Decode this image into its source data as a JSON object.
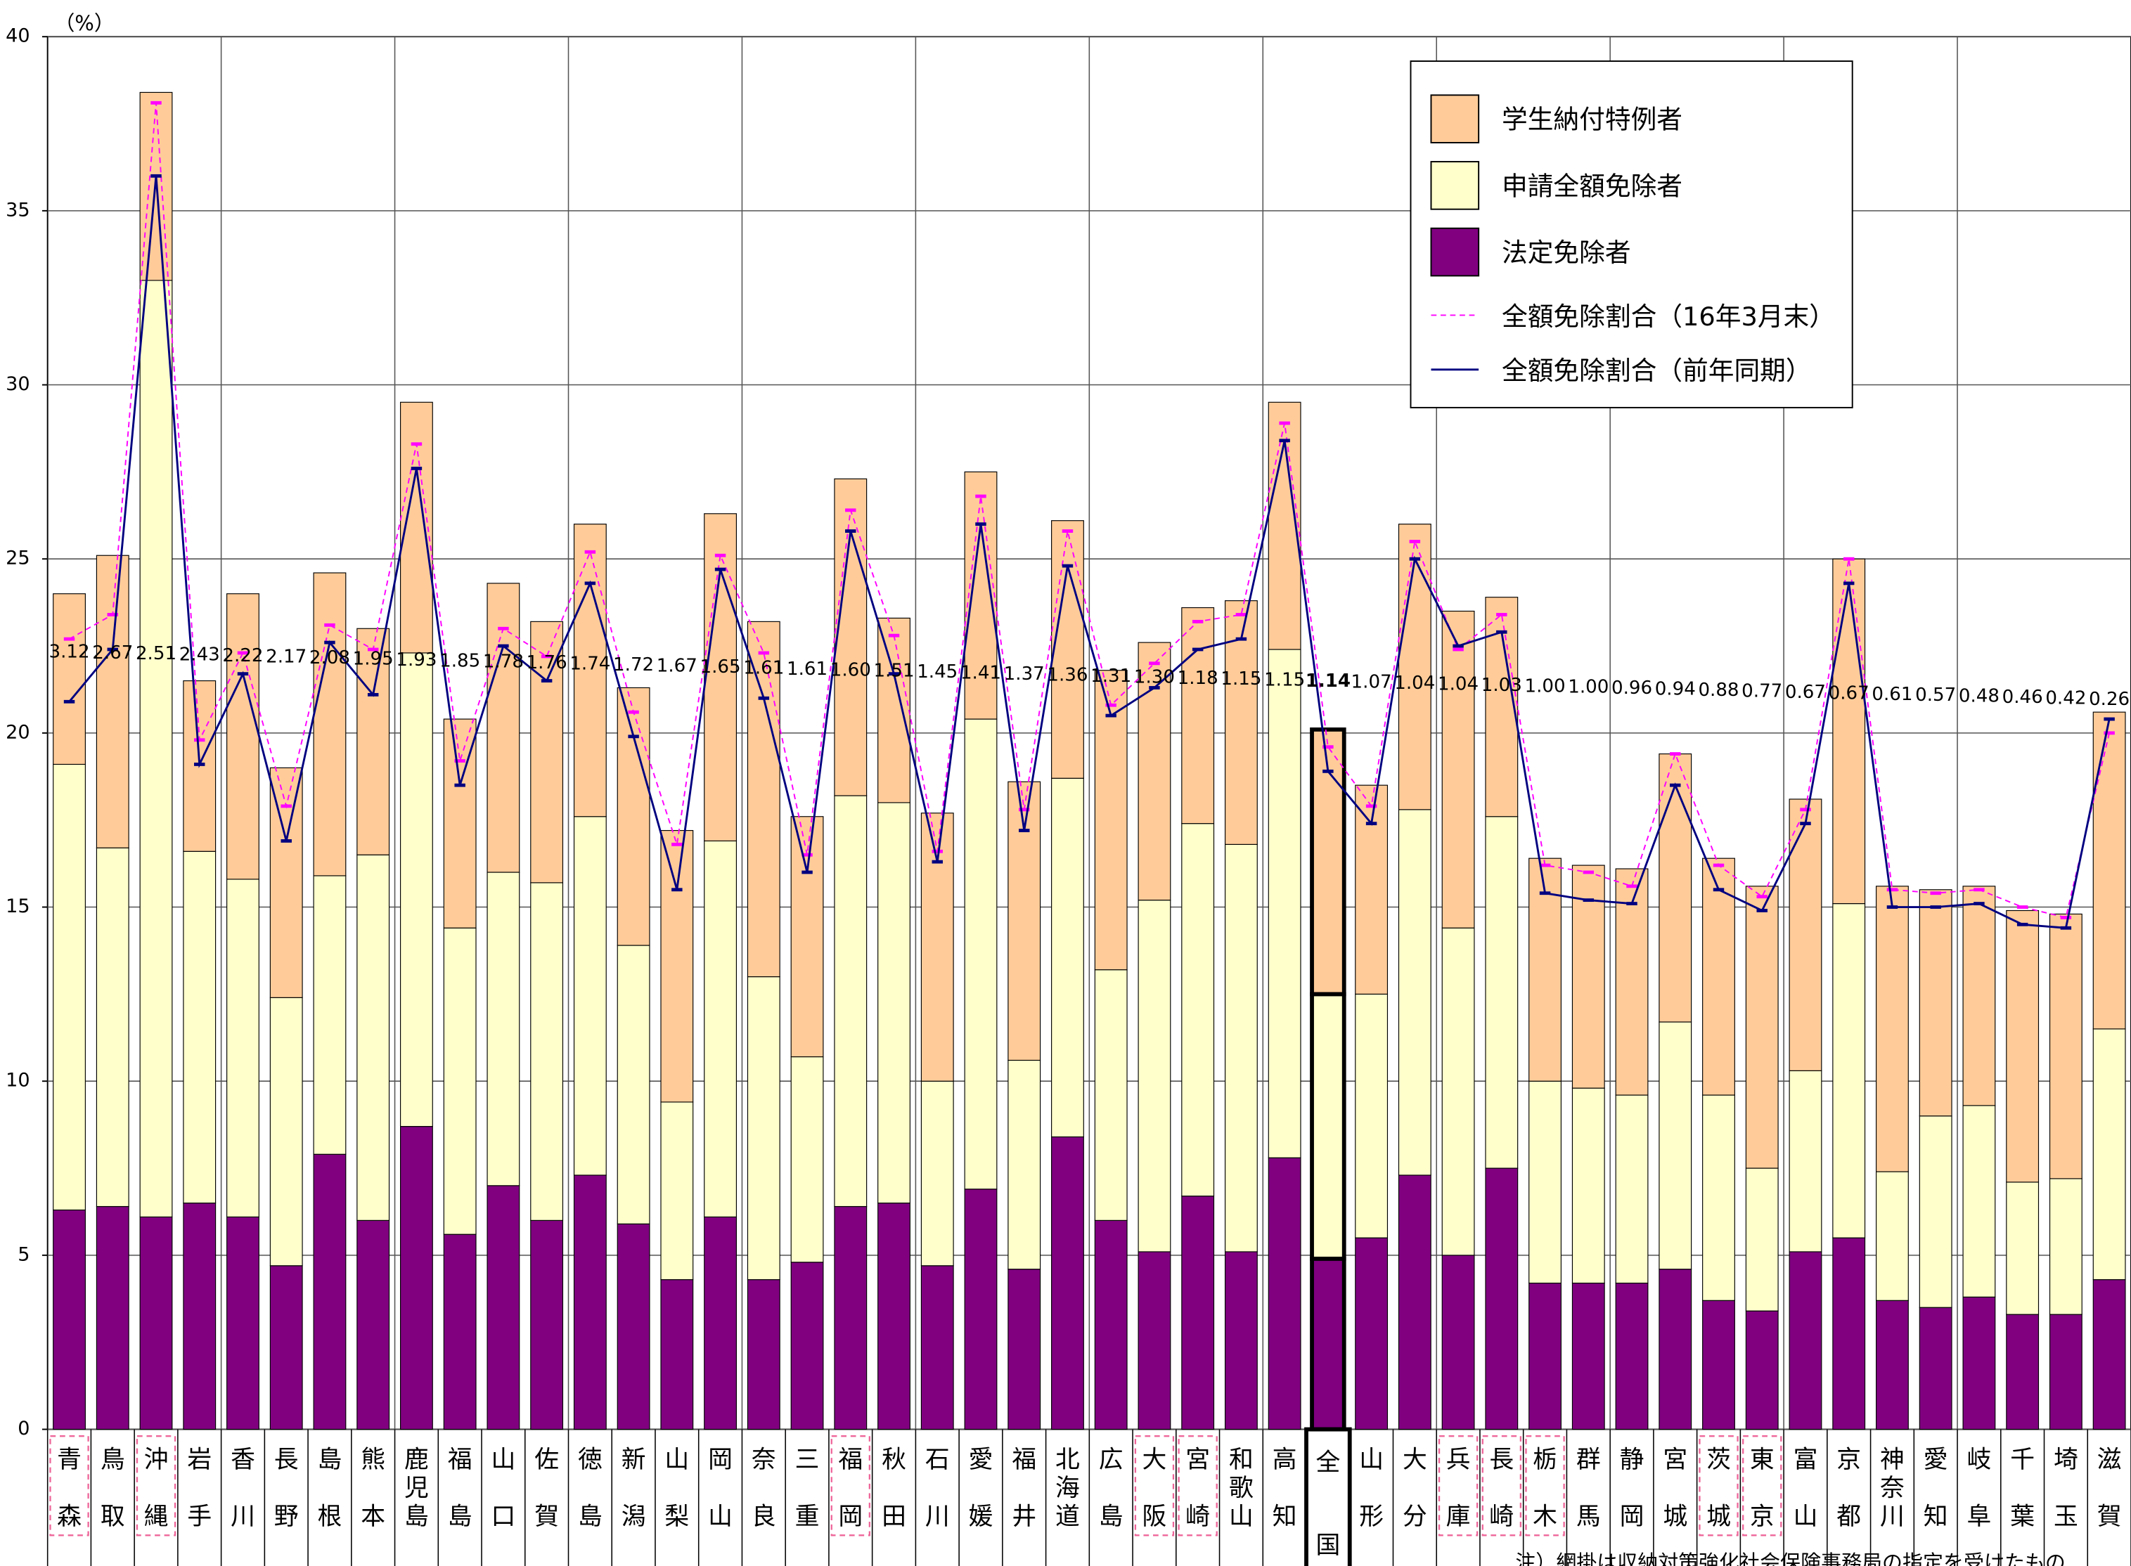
{
  "chart_data": {
    "type": "bar",
    "stacked": true,
    "unit": "（%）",
    "note": "注）網掛は収納対策強化社会保険事務局の指定を受けたもの",
    "categories": [
      "青森",
      "鳥取",
      "沖縄",
      "岩手",
      "香川",
      "長野",
      "島根",
      "熊本",
      "鹿児島",
      "福島",
      "山口",
      "佐賀",
      "徳島",
      "新潟",
      "山梨",
      "岡山",
      "奈良",
      "三重",
      "福岡",
      "秋田",
      "石川",
      "愛媛",
      "福井",
      "北海道",
      "広島",
      "大阪",
      "宮崎",
      "和歌山",
      "高知",
      "全国",
      "山形",
      "大分",
      "兵庫",
      "長崎",
      "栃木",
      "群馬",
      "静岡",
      "宮城",
      "茨城",
      "東京",
      "富山",
      "京都",
      "神奈川",
      "愛知",
      "岐阜",
      "千葉",
      "埼玉",
      "滋賀"
    ],
    "highlighted": [
      true,
      false,
      true,
      false,
      false,
      false,
      false,
      false,
      false,
      false,
      false,
      false,
      false,
      false,
      false,
      false,
      false,
      false,
      true,
      false,
      false,
      false,
      false,
      false,
      false,
      true,
      true,
      false,
      false,
      false,
      false,
      false,
      true,
      true,
      true,
      false,
      false,
      false,
      true,
      true,
      false,
      false,
      false,
      false,
      false,
      false,
      false,
      false
    ],
    "emphasized": [
      false,
      false,
      false,
      false,
      false,
      false,
      false,
      false,
      false,
      false,
      false,
      false,
      false,
      false,
      false,
      false,
      false,
      false,
      false,
      false,
      false,
      false,
      false,
      false,
      false,
      false,
      false,
      false,
      false,
      true,
      false,
      false,
      false,
      false,
      false,
      false,
      false,
      false,
      false,
      false,
      false,
      false,
      false,
      false,
      false,
      false,
      false,
      false
    ],
    "data_labels": [
      "3.12",
      "2.67",
      "2.51",
      "2.43",
      "2.22",
      "2.17",
      "2.08",
      "1.95",
      "1.93",
      "1.85",
      "1.78",
      "1.76",
      "1.74",
      "1.72",
      "1.67",
      "1.65",
      "1.61",
      "1.61",
      "1.60",
      "1.51",
      "1.45",
      "1.41",
      "1.37",
      "1.36",
      "1.31",
      "1.30",
      "1.18",
      "1.15",
      "1.15",
      "1.14",
      "1.07",
      "1.04",
      "1.04",
      "1.03",
      "1.00",
      "1.00",
      "0.96",
      "0.94",
      "0.88",
      "0.77",
      "0.67",
      "0.67",
      "0.61",
      "0.57",
      "0.48",
      "0.46",
      "0.42",
      "0.26"
    ],
    "series": [
      {
        "name": "法定免除者",
        "color": "#800080",
        "values": [
          6.3,
          6.4,
          6.1,
          6.5,
          6.1,
          4.7,
          7.9,
          6.0,
          8.7,
          5.6,
          7.0,
          6.0,
          7.3,
          5.9,
          4.3,
          6.1,
          4.3,
          4.8,
          6.4,
          6.5,
          4.7,
          6.9,
          4.6,
          8.4,
          6.0,
          5.1,
          6.7,
          5.1,
          7.8,
          4.9,
          5.5,
          7.3,
          5.0,
          7.5,
          4.2,
          4.2,
          4.2,
          4.6,
          3.7,
          3.4,
          5.1,
          5.5,
          3.7,
          3.5,
          3.8,
          3.3,
          3.3,
          4.3
        ]
      },
      {
        "name": "申請全額免除者",
        "color": "#ffffcc",
        "values": [
          12.8,
          10.3,
          26.9,
          10.1,
          9.7,
          7.7,
          8.0,
          10.5,
          13.6,
          8.8,
          9.0,
          9.7,
          10.3,
          8.0,
          5.1,
          10.8,
          8.7,
          5.9,
          11.8,
          11.5,
          5.3,
          13.5,
          6.0,
          10.3,
          7.2,
          10.1,
          10.7,
          11.7,
          14.6,
          7.6,
          7.0,
          10.5,
          9.4,
          10.1,
          5.8,
          5.6,
          5.4,
          7.1,
          5.9,
          4.1,
          5.2,
          9.6,
          3.7,
          5.5,
          5.5,
          3.8,
          3.9,
          7.2
        ]
      },
      {
        "name": "学生納付特例者",
        "color": "#ffcc99",
        "values": [
          4.9,
          8.4,
          5.4,
          4.9,
          8.2,
          6.6,
          8.7,
          6.5,
          7.2,
          6.0,
          8.3,
          7.5,
          8.4,
          7.4,
          7.8,
          9.4,
          10.2,
          6.9,
          9.1,
          5.3,
          7.7,
          7.1,
          8.0,
          7.4,
          8.6,
          7.4,
          6.2,
          7.0,
          7.1,
          7.6,
          6.0,
          8.2,
          9.1,
          6.3,
          6.4,
          6.4,
          6.5,
          7.7,
          6.8,
          8.1,
          7.8,
          9.9,
          8.2,
          6.5,
          6.3,
          7.8,
          7.6,
          9.1
        ]
      },
      {
        "name": "全額免除割合（16年3月末）",
        "type": "line",
        "dashed": true,
        "color": "#ff00ff",
        "values": [
          22.7,
          23.4,
          38.1,
          19.8,
          22.3,
          17.9,
          23.1,
          22.4,
          28.3,
          19.2,
          23.0,
          22.2,
          25.2,
          20.6,
          16.8,
          25.1,
          22.3,
          16.5,
          26.4,
          22.8,
          16.6,
          26.8,
          17.8,
          25.8,
          20.8,
          22.0,
          23.2,
          23.4,
          28.9,
          19.6,
          17.9,
          25.5,
          22.4,
          23.4,
          16.2,
          16.0,
          15.6,
          19.4,
          16.2,
          15.3,
          17.8,
          25.0,
          15.5,
          15.4,
          15.5,
          15.0,
          14.7,
          20.0
        ]
      },
      {
        "name": "全額免除割合（前年同期）",
        "type": "line",
        "dashed": false,
        "color": "#000080",
        "values": [
          20.9,
          22.4,
          36.0,
          19.1,
          21.7,
          16.9,
          22.6,
          21.1,
          27.6,
          18.5,
          22.5,
          21.5,
          24.3,
          19.9,
          15.5,
          24.7,
          21.0,
          16.0,
          25.8,
          21.7,
          16.3,
          26.0,
          17.2,
          24.8,
          20.5,
          21.3,
          22.4,
          22.7,
          28.4,
          18.9,
          17.4,
          25.0,
          22.5,
          22.9,
          15.4,
          15.2,
          15.1,
          18.5,
          15.5,
          14.9,
          17.4,
          24.3,
          15.0,
          15.0,
          15.1,
          14.5,
          14.4,
          20.4
        ]
      }
    ],
    "ylim": [
      0,
      40
    ],
    "yticks": [
      0,
      5,
      10,
      15,
      20,
      25,
      30,
      35,
      40
    ],
    "grid": true
  }
}
